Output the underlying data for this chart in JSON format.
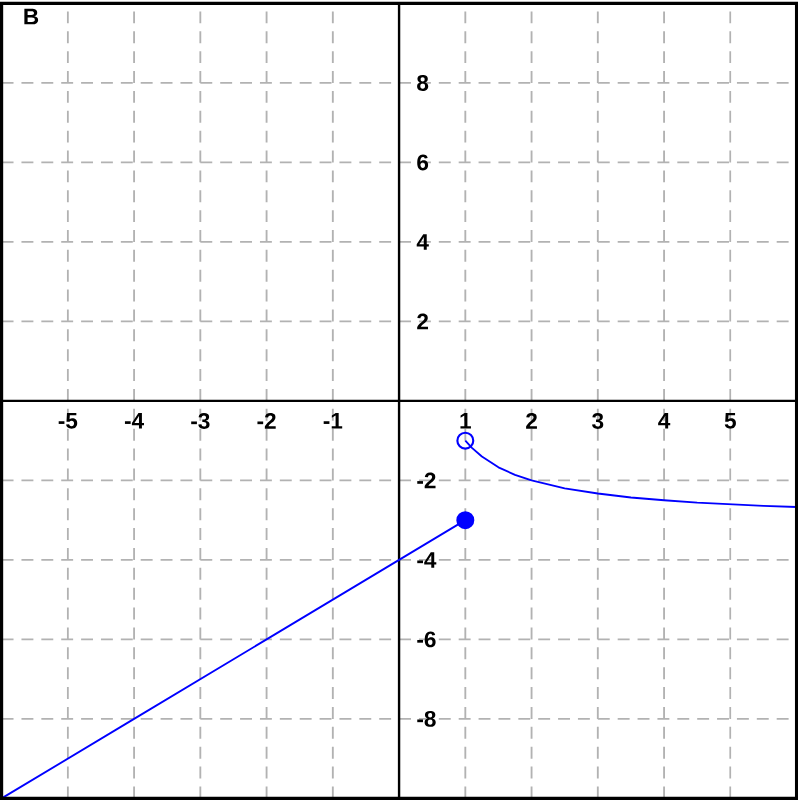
{
  "chart_data": {
    "type": "line",
    "title": "B",
    "xlim": [
      -6,
      6
    ],
    "ylim": [
      -10,
      10
    ],
    "xticks": [
      -5,
      -4,
      -3,
      -2,
      -1,
      1,
      2,
      3,
      4,
      5
    ],
    "yticks": [
      -8,
      -6,
      -4,
      -2,
      2,
      4,
      6,
      8
    ],
    "grid": true,
    "series": [
      {
        "color": "#0000ff",
        "x": [
          -6,
          -4,
          -2,
          0,
          1
        ],
        "values": [
          -10,
          -8,
          -6,
          -4,
          -3
        ]
      },
      {
        "color": "#0000ff",
        "x": [
          1,
          1.1,
          1.25,
          1.5,
          1.75,
          2,
          2.5,
          3,
          3.5,
          4,
          4.5,
          5,
          5.5,
          6
        ],
        "values": [
          -1,
          -1.18,
          -1.4,
          -1.67,
          -1.86,
          -2,
          -2.2,
          -2.33,
          -2.43,
          -2.5,
          -2.56,
          -2.6,
          -2.64,
          -2.67
        ]
      },
      {
        "type": "scatter",
        "color": "#0000ff",
        "marker": "circle",
        "x": [
          1
        ],
        "values": [
          -3
        ]
      },
      {
        "type": "scatter",
        "color": "#0000ff",
        "marker": "open circle",
        "x": [
          1
        ],
        "values": [
          -1
        ]
      }
    ]
  }
}
